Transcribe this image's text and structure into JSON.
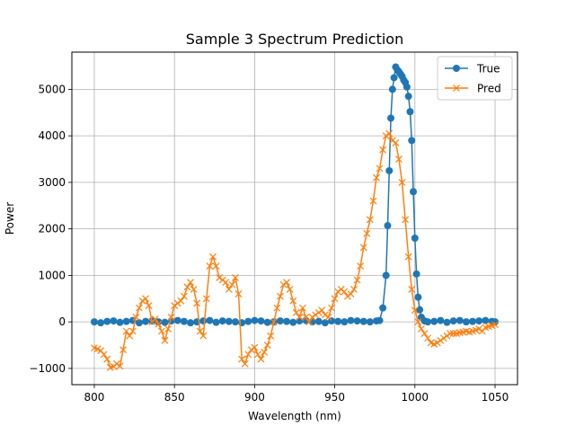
{
  "chart_data": {
    "type": "line",
    "title": "Sample 3 Spectrum Prediction",
    "xlabel": "Wavelength (nm)",
    "ylabel": "Power",
    "xlim": [
      786,
      1064
    ],
    "ylim": [
      -1350,
      5800
    ],
    "xticks": [
      800,
      850,
      900,
      950,
      1000,
      1050
    ],
    "xtick_labels": [
      "800",
      "850",
      "900",
      "950",
      "1000",
      "1050"
    ],
    "yticks": [
      -1000,
      0,
      1000,
      2000,
      3000,
      4000,
      5000
    ],
    "ytick_labels": [
      "−1000",
      "0",
      "1000",
      "2000",
      "3000",
      "4000",
      "5000"
    ],
    "grid": true,
    "legend": {
      "position": "upper-right"
    },
    "series": [
      {
        "name": "True",
        "color": "#1f77b4",
        "marker": "circle",
        "x": [
          800,
          804,
          808,
          812,
          816,
          820,
          824,
          828,
          832,
          836,
          840,
          844,
          848,
          852,
          856,
          860,
          864,
          868,
          872,
          876,
          880,
          884,
          888,
          892,
          896,
          900,
          904,
          908,
          912,
          916,
          920,
          924,
          928,
          932,
          936,
          940,
          944,
          948,
          952,
          956,
          960,
          964,
          968,
          972,
          976,
          978,
          980,
          982,
          983,
          984,
          985,
          986,
          987,
          988,
          989,
          990,
          991,
          992,
          993,
          994,
          995,
          996,
          997,
          998,
          999,
          1000,
          1001,
          1002,
          1003,
          1004,
          1006,
          1008,
          1012,
          1016,
          1020,
          1024,
          1028,
          1032,
          1036,
          1040,
          1044,
          1048,
          1050
        ],
        "y": [
          0,
          -20,
          10,
          20,
          -10,
          10,
          30,
          -20,
          10,
          20,
          0,
          -10,
          20,
          30,
          10,
          -20,
          0,
          20,
          30,
          -10,
          20,
          10,
          0,
          -20,
          10,
          30,
          20,
          -10,
          0,
          20,
          10,
          -10,
          20,
          30,
          0,
          10,
          -20,
          20,
          10,
          0,
          30,
          20,
          10,
          0,
          20,
          30,
          300,
          1000,
          2070,
          3250,
          4380,
          5000,
          5250,
          5480,
          5420,
          5380,
          5330,
          5280,
          5200,
          5150,
          5050,
          4850,
          4520,
          3900,
          2800,
          1800,
          1030,
          530,
          260,
          100,
          20,
          0,
          10,
          30,
          -10,
          20,
          30,
          0,
          10,
          20,
          30,
          10,
          0
        ]
      },
      {
        "name": "Pred",
        "color": "#ff7f0e",
        "marker": "x",
        "x": [
          800,
          802,
          804,
          806,
          808,
          810,
          812,
          814,
          816,
          818,
          820,
          822,
          824,
          826,
          828,
          830,
          832,
          834,
          836,
          838,
          840,
          842,
          844,
          846,
          848,
          850,
          852,
          854,
          856,
          858,
          860,
          862,
          864,
          866,
          868,
          870,
          872,
          874,
          876,
          878,
          880,
          882,
          884,
          886,
          888,
          890,
          892,
          894,
          896,
          898,
          900,
          902,
          904,
          906,
          908,
          910,
          912,
          914,
          916,
          918,
          920,
          922,
          924,
          926,
          928,
          930,
          932,
          934,
          936,
          938,
          940,
          942,
          944,
          946,
          948,
          950,
          952,
          954,
          956,
          958,
          960,
          962,
          964,
          966,
          968,
          970,
          972,
          974,
          976,
          978,
          980,
          982,
          984,
          986,
          988,
          990,
          992,
          994,
          996,
          998,
          1000,
          1002,
          1004,
          1006,
          1008,
          1010,
          1012,
          1014,
          1016,
          1018,
          1020,
          1022,
          1024,
          1026,
          1028,
          1030,
          1032,
          1034,
          1036,
          1038,
          1040,
          1042,
          1044,
          1046,
          1048,
          1050
        ],
        "y": [
          -560,
          -580,
          -620,
          -700,
          -800,
          -980,
          -960,
          -900,
          -950,
          -600,
          -200,
          -300,
          -200,
          100,
          300,
          450,
          500,
          350,
          0,
          60,
          -50,
          -200,
          -400,
          -150,
          100,
          350,
          400,
          450,
          550,
          750,
          850,
          700,
          400,
          -200,
          -300,
          500,
          1200,
          1400,
          1200,
          950,
          900,
          850,
          700,
          800,
          950,
          600,
          -800,
          -900,
          -700,
          -600,
          -550,
          -700,
          -800,
          -650,
          -500,
          -300,
          0,
          300,
          550,
          800,
          850,
          700,
          450,
          200,
          100,
          300,
          100,
          0,
          100,
          150,
          200,
          250,
          150,
          100,
          300,
          500,
          650,
          700,
          650,
          550,
          600,
          700,
          900,
          1200,
          1600,
          1900,
          2200,
          2600,
          3100,
          3300,
          3700,
          4000,
          4050,
          3900,
          3850,
          3500,
          3000,
          2200,
          1400,
          700,
          250,
          0,
          -150,
          -250,
          -350,
          -450,
          -480,
          -450,
          -400,
          -350,
          -300,
          -250,
          -250,
          -250,
          -230,
          -220,
          -200,
          -220,
          -200,
          -180,
          -150,
          -200,
          -120,
          -100,
          -80,
          -60
        ]
      }
    ]
  }
}
